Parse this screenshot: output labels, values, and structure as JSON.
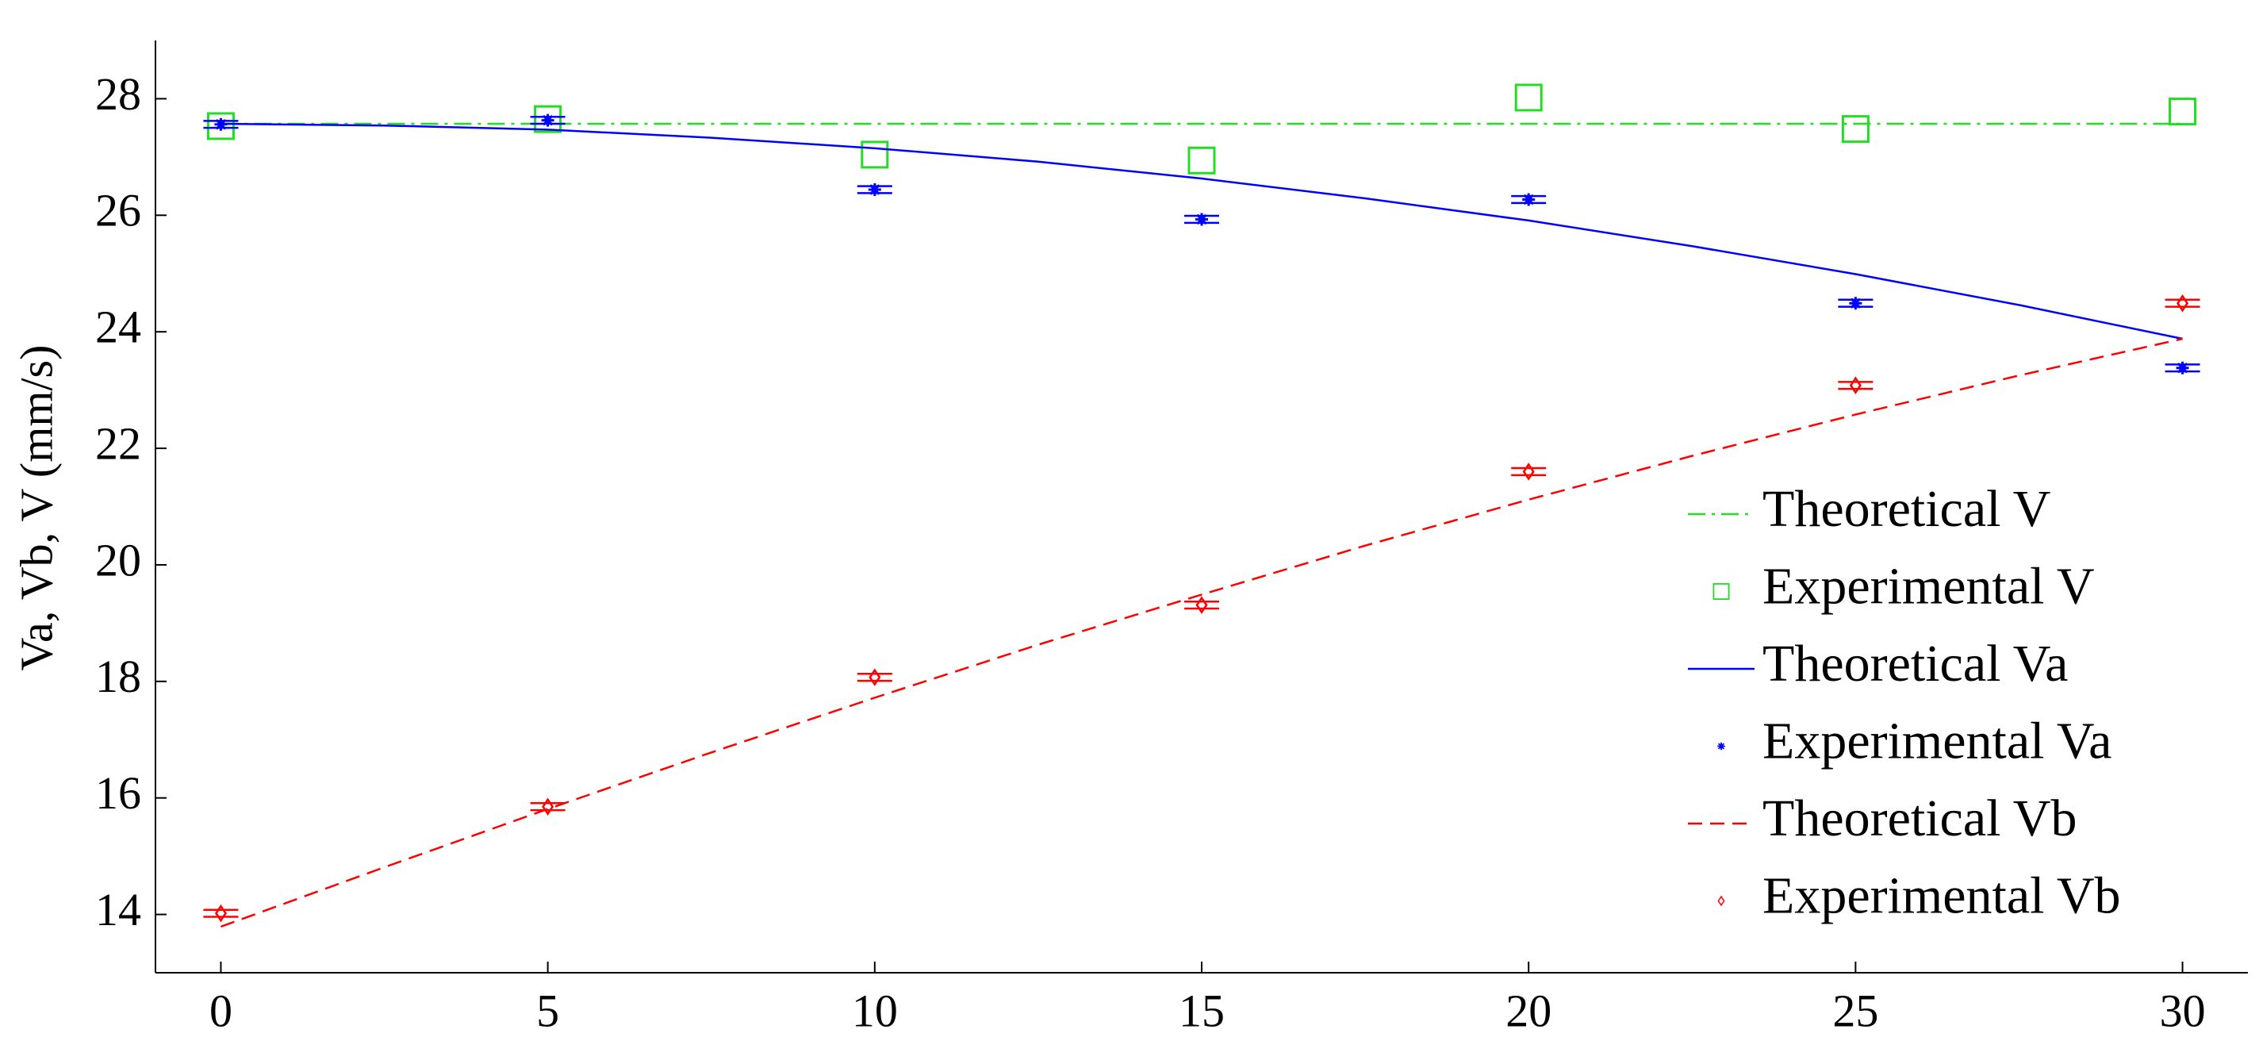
{
  "chart_data": {
    "type": "line",
    "y_label": "Va, Vb, V (mm/s)",
    "xlim": [
      -1,
      31
    ],
    "xticks": [
      0,
      5,
      10,
      15,
      20,
      25,
      30
    ],
    "ylim": [
      13,
      29
    ],
    "yticks": [
      14,
      16,
      18,
      20,
      22,
      24,
      26,
      28
    ],
    "series": [
      {
        "name": "Theoretical V",
        "color": "#22dd22",
        "style": "dashdot",
        "x": [
          0,
          30
        ],
        "values": [
          27.57,
          27.57
        ]
      },
      {
        "name": "Experimental V",
        "color": "#22dd22",
        "marker": "square",
        "x": [
          0,
          5,
          10,
          15,
          20,
          25,
          30
        ],
        "values": [
          27.53,
          27.65,
          27.04,
          26.94,
          28.02,
          27.48,
          27.78
        ]
      },
      {
        "name": "Theoretical Va",
        "color": "#0000ff",
        "style": "solid",
        "x": [
          0,
          2.5,
          5,
          7.5,
          10,
          12.5,
          15,
          17.5,
          20,
          22.5,
          25,
          27.5,
          30
        ],
        "values": [
          27.57,
          27.54,
          27.47,
          27.33,
          27.15,
          26.92,
          26.63,
          26.29,
          25.91,
          25.47,
          24.99,
          24.46,
          23.88
        ]
      },
      {
        "name": "Experimental Va",
        "color": "#0000ff",
        "marker": "asterisk",
        "x": [
          0,
          5,
          10,
          15,
          20,
          25,
          30
        ],
        "values": [
          27.56,
          27.63,
          26.44,
          25.93,
          26.27,
          24.49,
          23.38
        ],
        "errors": [
          0.06,
          0.06,
          0.06,
          0.06,
          0.06,
          0.06,
          0.06
        ]
      },
      {
        "name": "Theoretical Vb",
        "color": "#ff0000",
        "style": "dashed",
        "x": [
          0,
          2.5,
          5,
          7.5,
          10,
          12.5,
          15,
          17.5,
          20,
          22.5,
          25,
          27.5,
          30
        ],
        "values": [
          13.79,
          14.81,
          15.81,
          16.78,
          17.72,
          18.63,
          19.49,
          20.33,
          21.12,
          21.87,
          22.58,
          23.25,
          23.88
        ]
      },
      {
        "name": "Experimental Vb",
        "color": "#ff0000",
        "marker": "diamond",
        "x": [
          0,
          5,
          10,
          15,
          20,
          25,
          30
        ],
        "values": [
          14.02,
          15.85,
          18.07,
          19.31,
          21.6,
          23.08,
          24.49
        ],
        "errors": [
          0.06,
          0.06,
          0.06,
          0.06,
          0.06,
          0.06,
          0.06
        ]
      }
    ]
  }
}
